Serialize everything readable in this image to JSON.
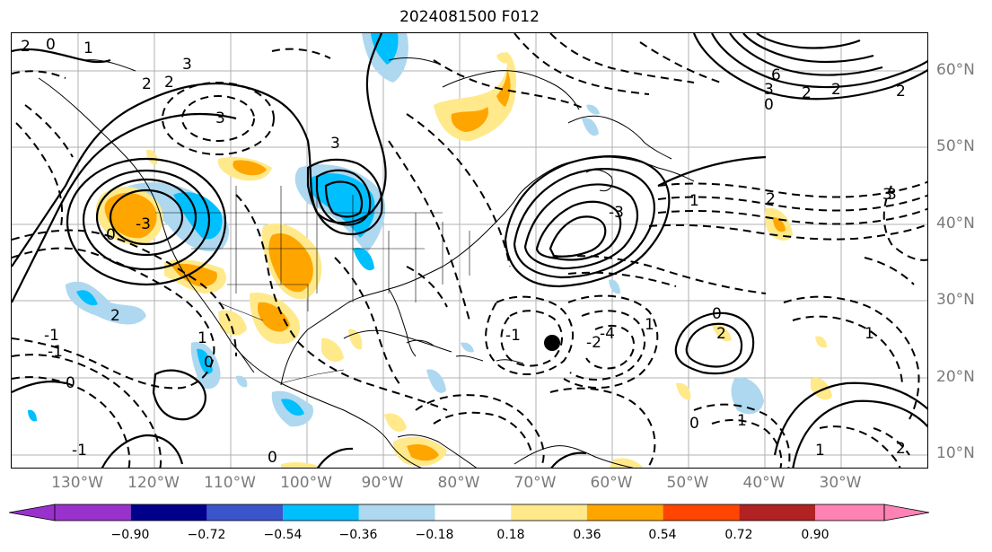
{
  "title": "2024081500 F012",
  "lon_labels": [
    "130°W",
    "120°W",
    "110°W",
    "100°W",
    "90°W",
    "80°W",
    "70°W",
    "60°W",
    "50°W",
    "40°W",
    "30°W"
  ],
  "lat_labels": [
    "60°N",
    "50°N",
    "40°N",
    "30°N",
    "20°N",
    "10°N"
  ],
  "colorbar": {
    "ticks": [
      "−0.90",
      "−0.72",
      "−0.54",
      "−0.36",
      "−0.18",
      "0.18",
      "0.36",
      "0.54",
      "0.72",
      "0.90"
    ],
    "colors": [
      "#9932cc",
      "#00008b",
      "#3a55cc",
      "#00bfff",
      "#add8f0",
      "#ffffff",
      "#ffe98a",
      "#ffa500",
      "#ff4500",
      "#b22222",
      "#ff82b4"
    ]
  },
  "contour_labels": [
    "2",
    "0",
    "1",
    "2",
    "2",
    "3",
    "3",
    "3",
    "-3",
    "0",
    "6",
    "3",
    "2",
    "0",
    "2",
    "2",
    "3",
    "-3",
    "1",
    "2",
    "3",
    "-1",
    "-2",
    "1",
    "0",
    "-4",
    "1",
    "2",
    "0",
    "-1",
    "-1",
    "0",
    "1",
    "0",
    "2",
    "-1",
    "1",
    "2",
    "0",
    "1"
  ],
  "marker": "storm-center"
}
